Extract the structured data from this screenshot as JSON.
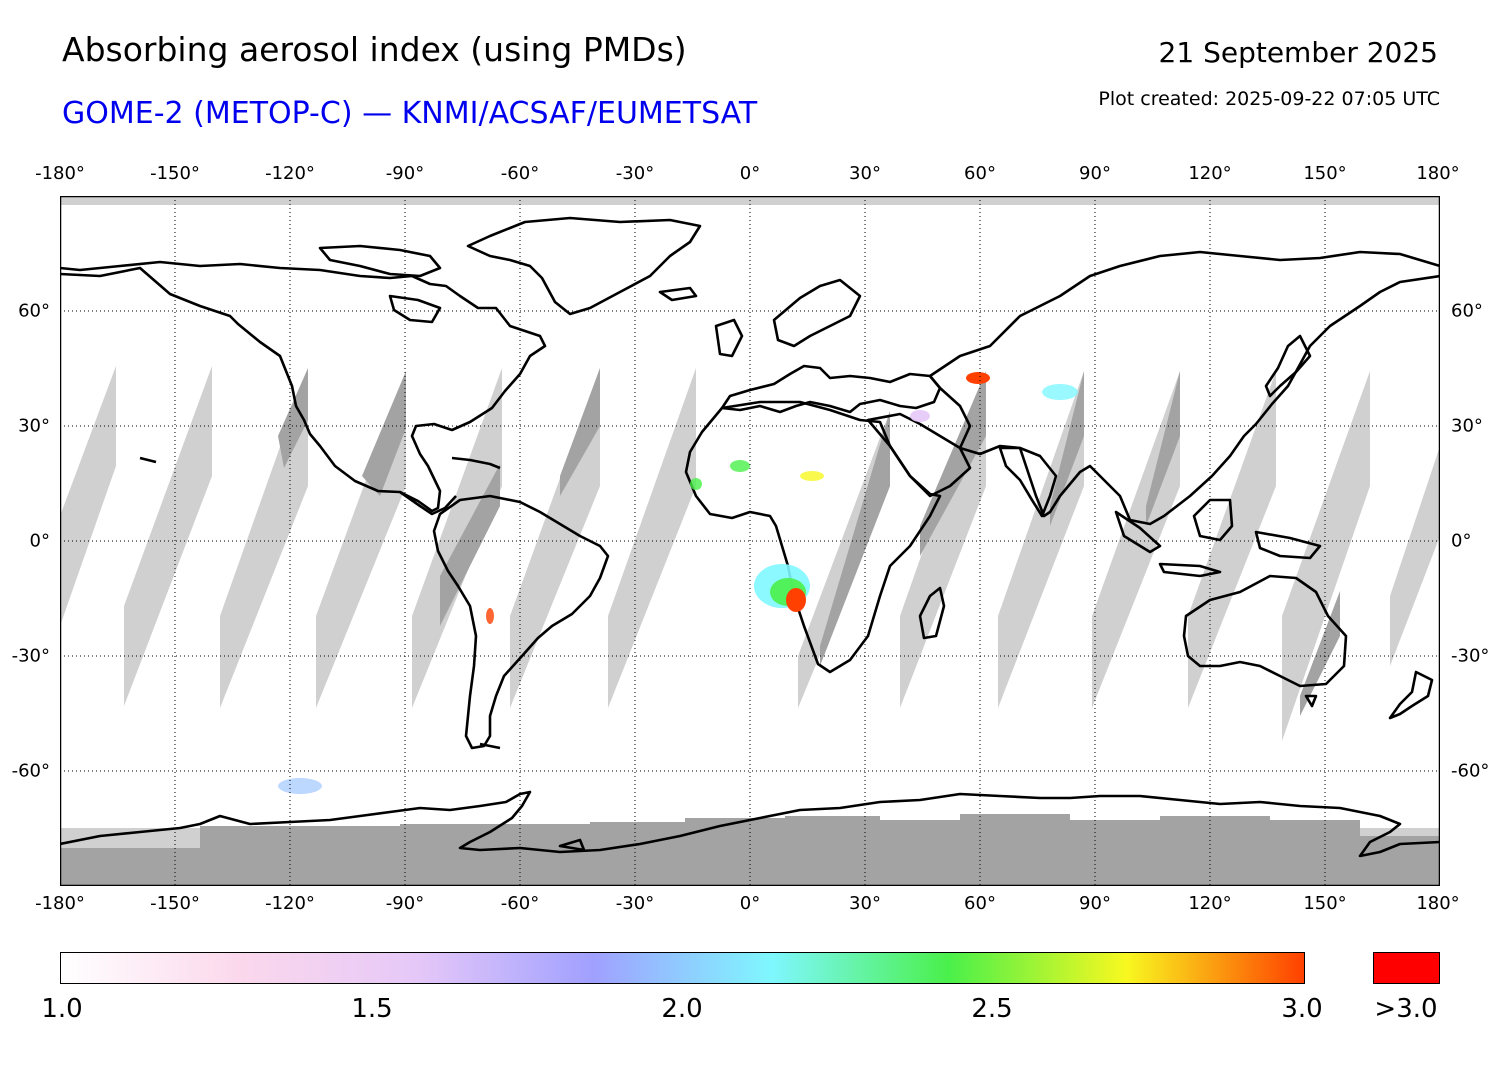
{
  "header": {
    "title": "Absorbing aerosol index (using PMDs)",
    "subtitle": "GOME-2 (METOP-C) — KNMI/ACSAF/EUMETSAT",
    "date": "21 September 2025",
    "plot_created": "Plot created: 2025-09-22 07:05 UTC"
  },
  "map": {
    "projection": "plate carree",
    "lon_range": [
      -180,
      180
    ],
    "lat_range": [
      -90,
      90
    ],
    "gridlines": "dotted",
    "coastlines": "black",
    "no_data_color": "#a3a3a3",
    "missing_orbit_color": "#d0d0d0",
    "ocean_land_background": "#ffffff",
    "lon_labels": [
      "-180°",
      "-150°",
      "-120°",
      "-90°",
      "-60°",
      "-30°",
      "0°",
      "30°",
      "60°",
      "90°",
      "120°",
      "150°",
      "180°"
    ],
    "lat_labels": [
      "60°",
      "30°",
      "0°",
      "-30°",
      "-60°"
    ],
    "lat_values": [
      60,
      30,
      0,
      -30,
      -60
    ],
    "lon_values": [
      -180,
      -150,
      -120,
      -90,
      -60,
      -30,
      0,
      30,
      60,
      90,
      120,
      150,
      180
    ]
  },
  "colorbar": {
    "min": 1.0,
    "max": 3.0,
    "ticks": [
      "1.0",
      "1.5",
      "2.0",
      "2.5",
      "3.0"
    ],
    "tick_values": [
      1.0,
      1.5,
      2.0,
      2.5,
      3.0
    ],
    "overflow_label": ">3.0",
    "overflow_color": "#ff0000",
    "colors": [
      "#ffffff",
      "#fbd8ec",
      "#e6c8f8",
      "#a0a0ff",
      "#7ff7ff",
      "#4af04a",
      "#f8f820",
      "#ff4000"
    ]
  },
  "chart_data": {
    "type": "heatmap",
    "variable": "Absorbing aerosol index",
    "notable_plumes": [
      {
        "lon": 10,
        "lat": -15,
        "aai": 3.0
      },
      {
        "lon": 57,
        "lat": 42,
        "aai": 2.7
      },
      {
        "lon": 85,
        "lat": 38,
        "aai": 2.2
      },
      {
        "lon": -5,
        "lat": 17,
        "aai": 2.3
      },
      {
        "lon": 15,
        "lat": 17,
        "aai": 2.4
      },
      {
        "lon": -68,
        "lat": -20,
        "aai": 2.6
      }
    ]
  }
}
